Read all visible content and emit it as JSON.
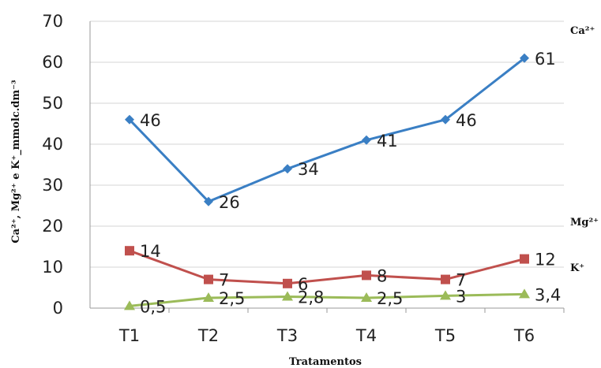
{
  "chart_data": {
    "type": "line",
    "categories": [
      "T1",
      "T2",
      "T3",
      "T4",
      "T5",
      "T6"
    ],
    "xlabel": "Tratamentos",
    "ylabel": "Ca²⁺, Mg²⁺ e K⁺_mmolc.dm⁻³",
    "ylim": [
      0,
      70
    ],
    "yticks": [
      "0",
      "10",
      "20",
      "30",
      "40",
      "50",
      "60",
      "70"
    ],
    "grid": true,
    "series": [
      {
        "name": "Ca²⁺",
        "color": "#3a7fc4",
        "marker": "diamond",
        "values": [
          46,
          26,
          34,
          41,
          46,
          61
        ],
        "labels": [
          "46",
          "26",
          "34",
          "41",
          "46",
          "61"
        ]
      },
      {
        "name": "Mg²⁺",
        "color": "#c0504d",
        "marker": "square",
        "values": [
          14,
          7,
          6,
          8,
          7,
          12
        ],
        "labels": [
          "14",
          "7",
          "6",
          "8",
          "7",
          "12"
        ]
      },
      {
        "name": "K⁺",
        "color": "#9bbb59",
        "marker": "triangle",
        "values": [
          0.5,
          2.5,
          2.8,
          2.5,
          3,
          3.4
        ],
        "labels": [
          "0,5",
          "2,5",
          "2,8",
          "2,5",
          "3",
          "3,4"
        ]
      }
    ]
  }
}
